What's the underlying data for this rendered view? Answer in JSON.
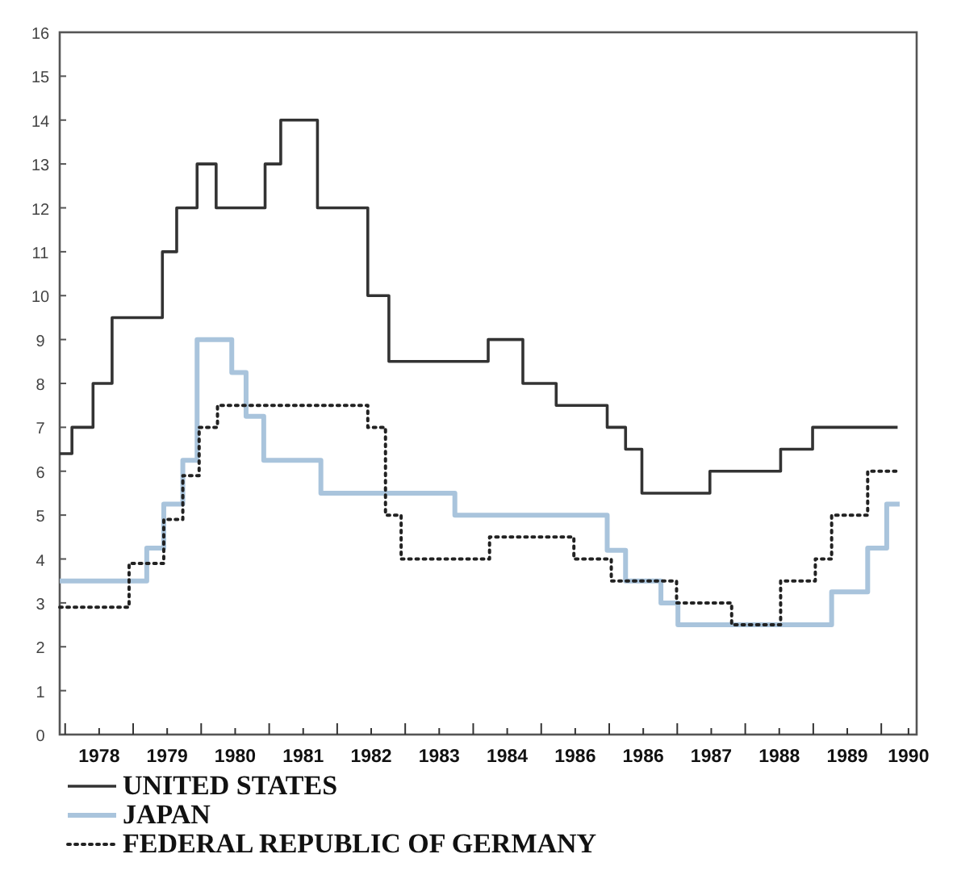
{
  "chart_data": {
    "type": "step",
    "xlim": [
      1977.92,
      1990.52
    ],
    "xticks": [
      {
        "value": 1978,
        "label": null
      },
      {
        "value": 1978.5,
        "label": "1978"
      },
      {
        "value": 1979,
        "label": null
      },
      {
        "value": 1979.5,
        "label": "1979"
      },
      {
        "value": 1980,
        "label": null
      },
      {
        "value": 1980.5,
        "label": "1980"
      },
      {
        "value": 1981,
        "label": null
      },
      {
        "value": 1981.5,
        "label": "1981"
      },
      {
        "value": 1982,
        "label": null
      },
      {
        "value": 1982.5,
        "label": "1982"
      },
      {
        "value": 1983,
        "label": null
      },
      {
        "value": 1983.5,
        "label": "1983"
      },
      {
        "value": 1984,
        "label": null
      },
      {
        "value": 1984.5,
        "label": "1984"
      },
      {
        "value": 1985,
        "label": null
      },
      {
        "value": 1985.5,
        "label": "1986"
      },
      {
        "value": 1986,
        "label": null
      },
      {
        "value": 1986.5,
        "label": "1986"
      },
      {
        "value": 1987,
        "label": null
      },
      {
        "value": 1987.5,
        "label": "1987"
      },
      {
        "value": 1988,
        "label": null
      },
      {
        "value": 1988.5,
        "label": "1988"
      },
      {
        "value": 1989,
        "label": null
      },
      {
        "value": 1989.5,
        "label": "1989"
      },
      {
        "value": 1990,
        "label": null
      },
      {
        "value": 1990.4,
        "label": "1990"
      }
    ],
    "ylim": [
      0,
      16
    ],
    "yticks": [
      0,
      1,
      2,
      3,
      4,
      5,
      6,
      7,
      8,
      9,
      10,
      11,
      12,
      13,
      14,
      15,
      16
    ],
    "grid": false,
    "legend": "bottom",
    "marker": "none",
    "series": [
      {
        "name": "UNITED STATES",
        "color": "#333333",
        "line_style": "solid",
        "x": [
          1977.92,
          1978.1,
          1978.41,
          1978.69,
          1979.43,
          1979.64,
          1979.94,
          1980.22,
          1980.94,
          1981.17,
          1981.71,
          1982.45,
          1982.76,
          1984.22,
          1984.73,
          1985.22,
          1985.97,
          1986.24,
          1986.48,
          1987.48,
          1988.52,
          1988.99,
          1990.24
        ],
        "values": [
          6.4,
          7,
          8,
          9.5,
          11,
          12,
          13,
          12,
          13,
          14,
          12,
          10,
          8.5,
          9,
          8,
          7.5,
          7,
          6.5,
          5.5,
          6,
          6.5,
          7,
          7
        ]
      },
      {
        "name": "JAPAN",
        "color": "#a9c4dc",
        "line_style": "solid",
        "x": [
          1977.92,
          1979.2,
          1979.45,
          1979.73,
          1979.94,
          1980.45,
          1980.66,
          1980.92,
          1981.76,
          1983.73,
          1985.97,
          1986.24,
          1986.76,
          1987.01,
          1989.27,
          1989.8,
          1990.08,
          1990.27
        ],
        "values": [
          3.5,
          4.25,
          5.25,
          6.25,
          9,
          8.25,
          7.25,
          6.25,
          5.5,
          5,
          4.2,
          3.5,
          3,
          2.5,
          3.25,
          4.25,
          5.25,
          5.25
        ]
      },
      {
        "name": "FEDERAL REPUBLIC OF GERMANY",
        "color": "#222222",
        "line_style": "dotted",
        "x": [
          1977.92,
          1978.94,
          1979.45,
          1979.73,
          1979.97,
          1980.24,
          1982.45,
          1982.71,
          1982.94,
          1984.24,
          1985.48,
          1986.03,
          1986.99,
          1987.8,
          1988.52,
          1989.03,
          1989.27,
          1989.8,
          1990.24
        ],
        "values": [
          2.9,
          3.9,
          4.9,
          5.9,
          7,
          7.5,
          7,
          5,
          4,
          4.5,
          4,
          3.5,
          3,
          2.5,
          3.5,
          4,
          5,
          6,
          6
        ]
      }
    ]
  }
}
